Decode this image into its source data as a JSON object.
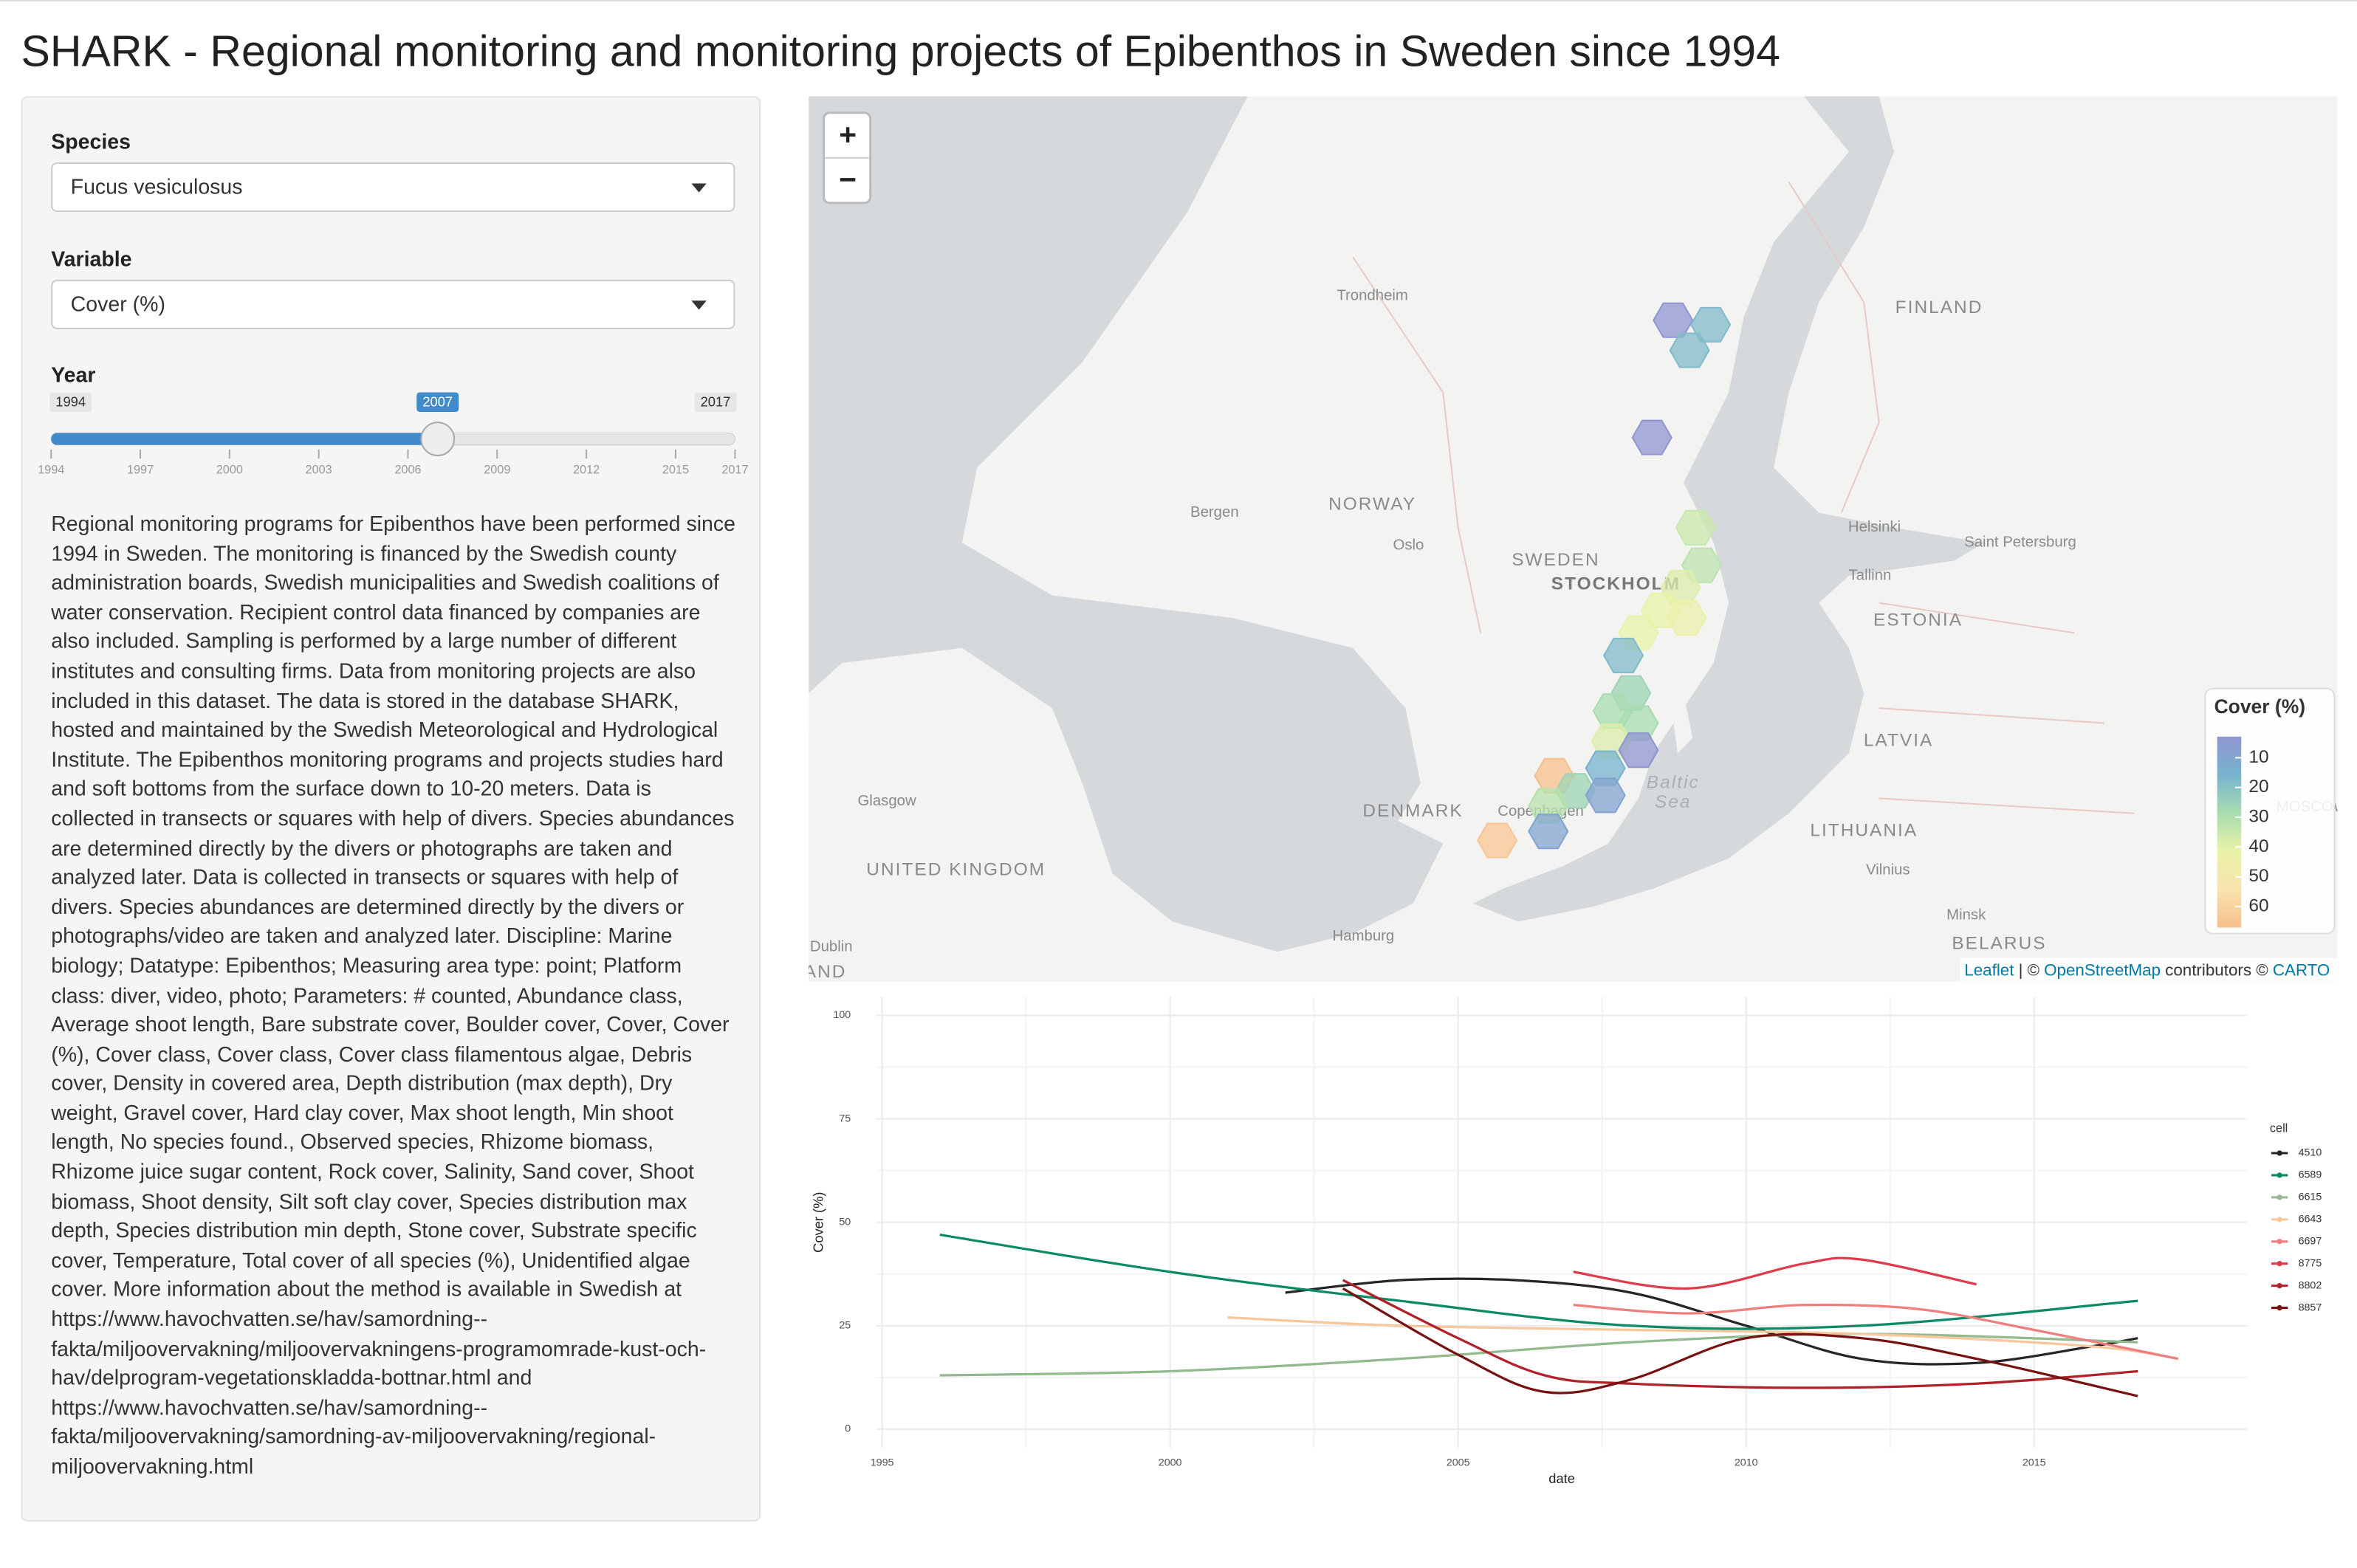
{
  "header": {
    "title": "SHARK - Regional monitoring and monitoring projects of Epibenthos in Sweden since 1994"
  },
  "sidebar": {
    "species": {
      "label": "Species",
      "value": "Fucus vesiculosus"
    },
    "variable": {
      "label": "Variable",
      "value": "Cover (%)"
    },
    "year": {
      "label": "Year",
      "min": 1994,
      "max": 2017,
      "value": 2007,
      "ticks": [
        1994,
        1997,
        2000,
        2003,
        2006,
        2009,
        2012,
        2015,
        2017
      ]
    },
    "description": "Regional monitoring programs for Epibenthos have been performed since 1994 in Sweden. The monitoring is financed by the Swedish county administration boards, Swedish municipalities and Swedish coalitions of water conservation. Recipient control data financed by companies are also included. Sampling is performed by a large number of different institutes and consulting firms. Data from monitoring projects are also included in this dataset. The data is stored in the database SHARK, hosted and maintained by the Swedish Meteorological and Hydrological Institute. The Epibenthos monitoring programs and projects studies hard and soft bottoms from the surface down to 10-20 meters. Data is collected in transects or squares with help of divers. Species abundances are determined directly by the divers or photographs are taken and analyzed later. Data is collected in transects or squares with help of divers. Species abundances are determined directly by the divers or photographs/video are taken and analyzed later. Discipline: Marine biology; Datatype: Epibenthos; Measuring area type: point; Platform class: diver, video, photo; Parameters: # counted, Abundance class, Average shoot length, Bare substrate cover, Boulder cover, Cover, Cover (%), Cover class, Cover class, Cover class filamentous algae, Debris cover, Density in covered area, Depth distribution (max depth), Dry weight, Gravel cover, Hard clay cover, Max shoot length, Min shoot length, No species found., Observed species, Rhizome biomass, Rhizome juice sugar content, Rock cover, Salinity, Sand cover, Shoot biomass, Shoot density, Silt soft clay cover, Species distribution max depth, Species distribution min depth, Stone cover, Substrate specific cover, Temperature, Total cover of all species (%), Unidentified algae cover. More information about the method is available in Swedish at https://www.havochvatten.se/hav/samordning--fakta/miljoovervakning/miljoovervakningens-programomrade-kust-och-hav/delprogram-vegetationskladda-bottnar.html and https://www.havochvatten.se/hav/samordning--fakta/miljoovervakning/samordning-av-miljoovervakning/regional-miljoovervakning.html"
  },
  "map": {
    "zoom_in": "+",
    "zoom_out": "−",
    "labels": [
      "Trondheim",
      "FINLAND",
      "NORWAY",
      "Bergen",
      "Oslo",
      "SWEDEN",
      "STOCKHOLM",
      "Helsinki",
      "Saint Petersburg",
      "Tallinn",
      "ESTONIA",
      "LATVIA",
      "Baltic",
      "Sea",
      "DENMARK",
      "Copenhagen",
      "Glasgow",
      "UNITED KINGDOM",
      "LITHUANIA",
      "Vilnius",
      "Minsk",
      "BELARUS",
      "Hamburg",
      "Dublin",
      "AND",
      "MOSCOW"
    ],
    "hexes": [
      8,
      22,
      22,
      8,
      35,
      33,
      38,
      40,
      42,
      40,
      22,
      28,
      30,
      30,
      38,
      10,
      20,
      60,
      28,
      15,
      32,
      15,
      58
    ],
    "legend": {
      "title": "Cover (%)",
      "ticks": [
        10,
        20,
        30,
        40,
        50,
        60
      ],
      "colors": [
        "#8f95d0",
        "#77b3cf",
        "#a8dcb0",
        "#e9f3a8",
        "#f8e3ae",
        "#f8c08c"
      ]
    },
    "attribution": [
      "Leaflet",
      "|",
      "©",
      "OpenStreetMap",
      "contributors ©",
      "CARTO"
    ]
  },
  "chart_data": {
    "type": "line",
    "y_label": "Cover (%)",
    "x_label": "date",
    "legend_title": "cell",
    "xlim": [
      1994.9,
      2018.7
    ],
    "ylim": [
      -4.5,
      104.5
    ],
    "xticks": [
      1995,
      2000,
      2005,
      2010,
      2015
    ],
    "yticks": [
      0,
      25,
      50,
      75,
      100
    ],
    "grid": true,
    "series": [
      {
        "name": "4510",
        "color": "#262626",
        "x": [
          2002,
          2004,
          2006,
          2008,
          2010,
          2012,
          2014,
          2016,
          2016.8
        ],
        "values": [
          33,
          36,
          36,
          33,
          25,
          17,
          16,
          20,
          22
        ]
      },
      {
        "name": "6589",
        "color": "#0b8a66",
        "x": [
          1996,
          2000,
          2004,
          2008,
          2012,
          2016.8
        ],
        "values": [
          47,
          38,
          31,
          25,
          25,
          31
        ]
      },
      {
        "name": "6615",
        "color": "#93b98f",
        "x": [
          1996,
          2000,
          2004,
          2008,
          2012,
          2016.8
        ],
        "values": [
          13,
          14,
          17,
          21,
          23,
          21
        ]
      },
      {
        "name": "6643",
        "color": "#f7c79d",
        "x": [
          2001,
          2004,
          2008,
          2012,
          2016,
          2017.5
        ],
        "values": [
          27,
          25,
          24,
          23,
          20,
          17
        ]
      },
      {
        "name": "6697",
        "color": "#ef7f7f",
        "x": [
          2007,
          2009,
          2011,
          2013,
          2015,
          2017.5
        ],
        "values": [
          30,
          28,
          30,
          29,
          24,
          17
        ]
      },
      {
        "name": "8775",
        "color": "#de3c4c",
        "x": [
          2007,
          2009,
          2011,
          2012,
          2014
        ],
        "values": [
          38,
          34,
          40,
          41,
          35
        ]
      },
      {
        "name": "8802",
        "color": "#b0222a",
        "x": [
          2003,
          2005,
          2006.5,
          2008,
          2011,
          2014,
          2016.8
        ],
        "values": [
          36,
          22,
          13,
          11,
          10,
          11,
          14
        ]
      },
      {
        "name": "8857",
        "color": "#771212",
        "x": [
          2003,
          2005,
          2006.5,
          2008,
          2010,
          2012,
          2014,
          2016.8
        ],
        "values": [
          34,
          18,
          9,
          12,
          22,
          22,
          17,
          8
        ]
      }
    ]
  }
}
